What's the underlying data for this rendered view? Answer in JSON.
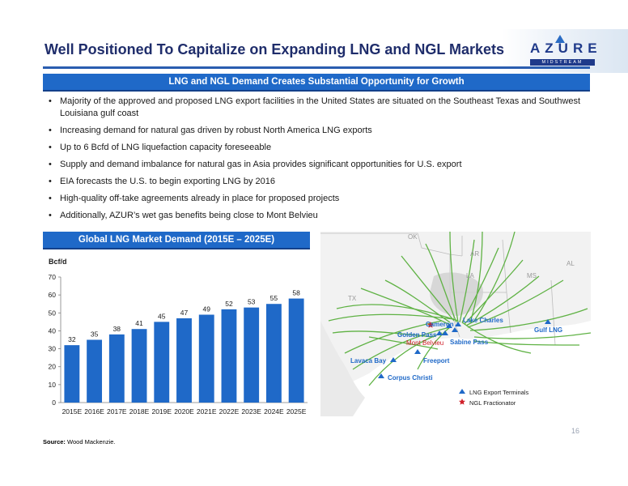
{
  "title": "Well Positioned To Capitalize on Expanding LNG and NGL Markets",
  "logo": {
    "word": "AZURE",
    "sub": "MIDSTREAM"
  },
  "section1": {
    "heading": "LNG and NGL Demand Creates Substantial Opportunity for Growth",
    "bullets": [
      "Majority of the approved and proposed LNG export facilities in the United States are situated on the Southeast Texas and Southwest Louisiana gulf coast",
      "Increasing demand for natural gas driven by robust North America LNG exports",
      "Up to 6 Bcfd of LNG liquefaction capacity foreseeable",
      "Supply and demand imbalance for natural gas in Asia provides significant opportunities for U.S. export",
      "EIA forecasts the U.S. to begin exporting LNG by 2016",
      "High-quality off-take agreements already in place for proposed projects",
      "Additionally, AZUR’s wet gas benefits being close to Mont Belvieu"
    ]
  },
  "section2": {
    "heading": "Global LNG Market Demand (2015E – 2025E)"
  },
  "chart_data": {
    "type": "bar",
    "ylabel": "Bcf/d",
    "ylim": [
      0,
      70
    ],
    "yticks": [
      0,
      10,
      20,
      30,
      40,
      50,
      60,
      70
    ],
    "categories": [
      "2015E",
      "2016E",
      "2017E",
      "2018E",
      "2019E",
      "2020E",
      "2021E",
      "2022E",
      "2023E",
      "2024E",
      "2025E"
    ],
    "values": [
      32,
      35,
      38,
      41,
      45,
      47,
      49,
      52,
      53,
      55,
      58
    ],
    "bar_color": "#1f69c8",
    "grid": false
  },
  "map": {
    "states": [
      "OK",
      "AR",
      "AL",
      "LA",
      "MS",
      "TX"
    ],
    "labels": {
      "cameron": "Cameron",
      "lake_charles": "Lake Charles",
      "golden_pass": "Golden Pass",
      "mont_belvieu": "Mont Belvieu",
      "sabine_pass": "Sabine Pass",
      "gulf_lng": "Gulf LNG",
      "lavaca_bay": "Lavaca Bay",
      "freeport": "Freeport",
      "corpus_christi": "Corpus Christi"
    },
    "legend": {
      "terminals": "LNG Export Terminals",
      "fractionator": "NGL Fractionator"
    },
    "colors": {
      "terminal": "#1f69c8",
      "fractionator": "#d0202a",
      "pipeline": "#5fb244"
    }
  },
  "source": {
    "label": "Source:",
    "text": "Wood Mackenzie."
  },
  "page_number": "16"
}
